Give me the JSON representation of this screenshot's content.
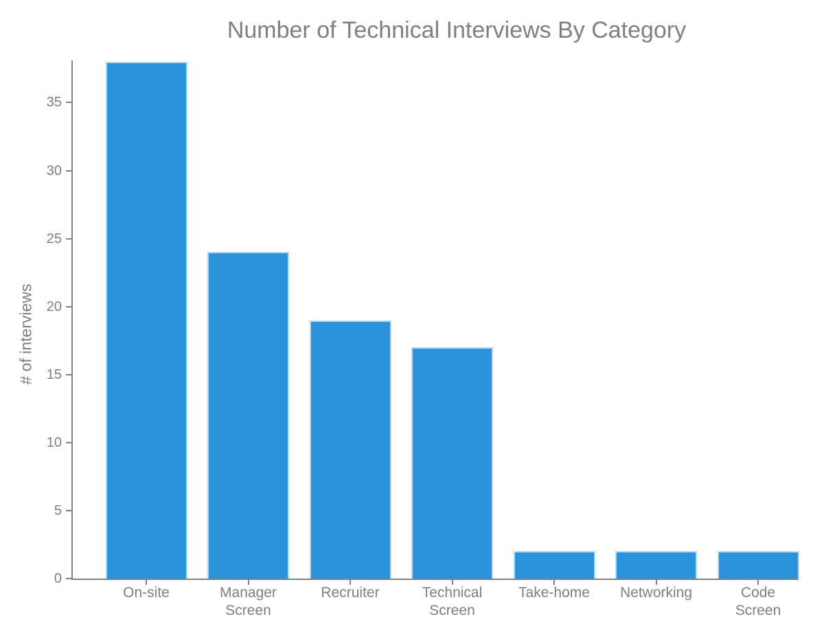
{
  "title": "Number of Technical Interviews By Category",
  "colors": {
    "bar_fill": "#2b92de",
    "bar_edge": "#b5d9f2",
    "text_gray": "#7f7f7f",
    "axis_gray": "#808080"
  },
  "chart_data": {
    "type": "bar",
    "title": "Number of Technical Interviews By Category",
    "xlabel": "",
    "ylabel": "# of interviews",
    "categories": [
      "On-site",
      "Manager Screen",
      "Recruiter",
      "Technical Screen",
      "Take-home",
      "Networking",
      "Code Screen"
    ],
    "values": [
      38,
      24,
      19,
      17,
      2,
      2,
      2
    ],
    "ylim": [
      0,
      38
    ],
    "yticks": [
      0,
      5,
      10,
      15,
      20,
      25,
      30,
      35
    ],
    "grid": false,
    "legend": "none",
    "bar_color": "#2b92de"
  }
}
